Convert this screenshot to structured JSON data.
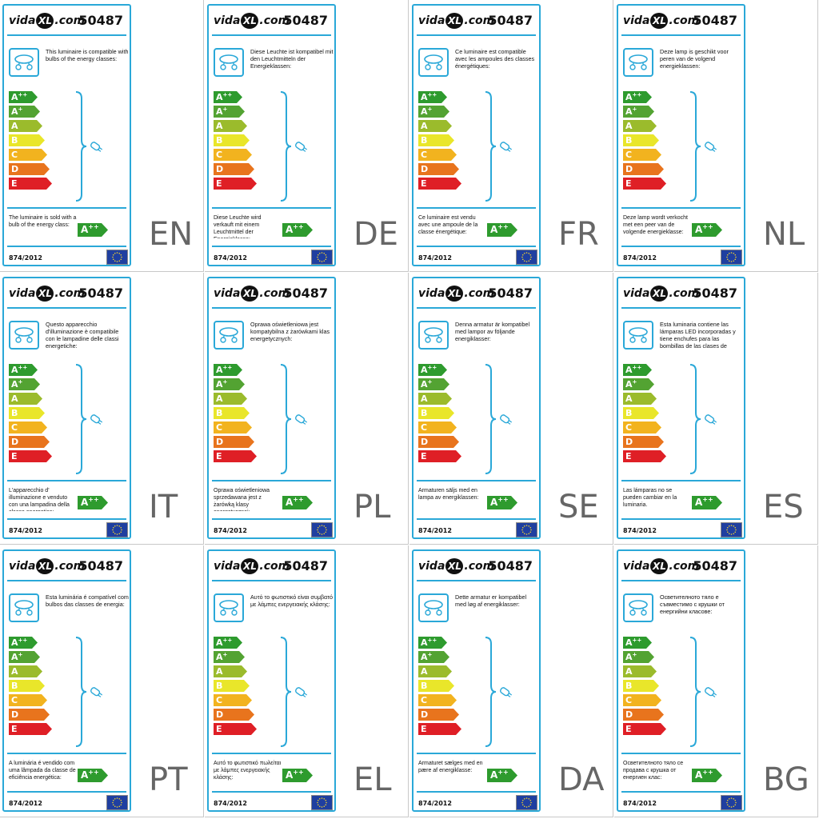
{
  "brand": "vidaXL.com",
  "brand_parts": {
    "pre": "vida",
    "mid": "XL",
    "post": ".com"
  },
  "model": "50487",
  "regulation": "874/2012",
  "sold_class": "A++",
  "energy_classes": [
    {
      "main": "A",
      "sup": "++",
      "color": "#2e9b2e"
    },
    {
      "main": "A",
      "sup": "+",
      "color": "#53a332"
    },
    {
      "main": "A",
      "sup": "",
      "color": "#9bbb2c"
    },
    {
      "main": "B",
      "sup": "",
      "color": "#e9e62a"
    },
    {
      "main": "C",
      "sup": "",
      "color": "#f2b31f"
    },
    {
      "main": "D",
      "sup": "",
      "color": "#e8741d"
    },
    {
      "main": "E",
      "sup": "",
      "color": "#df1f26"
    }
  ],
  "colors": {
    "frame": "#2aa8d8",
    "eu_flag": "#1f3fa0",
    "eu_stars": "#f7d42a"
  },
  "labels": [
    {
      "lang": "EN",
      "compat": "This luminaire is compatible with bulbs of the energy classes:",
      "sold": "The luminaire is sold with a bulb of the energy class:"
    },
    {
      "lang": "DE",
      "compat": "Diese Leuchte ist kompatibel mit den Leuchtmitteln der Energieklassen:",
      "sold": "Diese Leuchte wird verkauft mit einem Leuchtmittel der Energieklasse:"
    },
    {
      "lang": "FR",
      "compat": "Ce luminaire est compatible avec les ampoules des classes énergétiques:",
      "sold": "Ce luminaire est vendu avec une ampoule de la classe énergétique:"
    },
    {
      "lang": "NL",
      "compat": "Deze lamp is geschikt voor peren van de volgend energieklassen:",
      "sold": "Deze lamp wordt verkocht met een peer van de volgende energieklasse:"
    },
    {
      "lang": "IT",
      "compat": "Questo apparecchio d'illuminazione è compatibile con le lampadine delle classi energetiche:",
      "sold": "L'apparecchio d' illuminazione e venduto con una lampadina della classe energetica:"
    },
    {
      "lang": "PL",
      "compat": "Oprawa oświetleniowa jest kompatybilna z żarówkami klas energetycznych:",
      "sold": "Oprawa oświetleniowa sprzedawana jest z żarówką klasy energetycznej:"
    },
    {
      "lang": "SE",
      "compat": "Denna armatur är kompatibel med lampor av följande energiklasser:",
      "sold": "Armaturen säljs med en lampa av energiklassen:"
    },
    {
      "lang": "ES",
      "compat": "Esta luminaria contiene las lámparas LED incorporadas y tiene enchufes para las bombillas de las clases de energía:",
      "sold": "Las lámparas no se pueden cambiar en la luminaria."
    },
    {
      "lang": "PT",
      "compat": "Esta luminária é compatível com bulbos das classes de energia:",
      "sold": "A luminária é vendido com uma lâmpada da classe de eficiência energética:"
    },
    {
      "lang": "EL",
      "compat": "Αυτό το φωτιστικό είναι συμβατό με λάμπες ενεργειακής κλάσης:",
      "sold": "Αυτό το φωτιστικό πωλείται με λάμπες ενεργειακής κλάσης:"
    },
    {
      "lang": "DA",
      "compat": "Dette armatur er kompatibel med løg af energiklasser:",
      "sold": "Armaturet sælges med en pære af energiklasse:"
    },
    {
      "lang": "BG",
      "compat": "Осветителното тяло е съвместимо с крушки от енергийни класове:",
      "sold": "Осветителното тяло се продава с крушка от енергиен клас:"
    }
  ]
}
